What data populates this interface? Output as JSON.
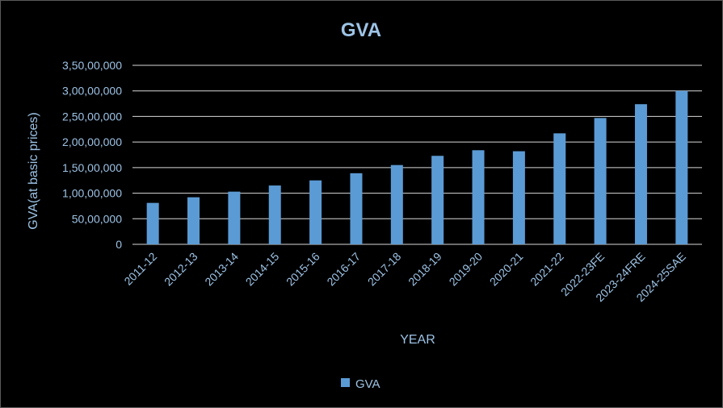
{
  "chart_data": {
    "type": "bar",
    "title": "GVA",
    "xlabel": "YEAR",
    "ylabel": "GVA(at basic prices)",
    "ylim": [
      0,
      35000000
    ],
    "yticks": [
      0,
      5000000,
      10000000,
      15000000,
      20000000,
      25000000,
      30000000,
      35000000
    ],
    "ytick_labels": [
      "0",
      "50,00,000",
      "1,00,00,000",
      "1,50,00,000",
      "2,00,00,000",
      "2,50,00,000",
      "3,00,00,000",
      "3,50,00,000"
    ],
    "categories": [
      "2011-12",
      "2012-13",
      "2013-14",
      "2014-15",
      "2015-16",
      "2016-17",
      "2017-18",
      "2018-19",
      "2019-20",
      "2020-21",
      "2021-22",
      "2022-23FE",
      "2023-24FRE",
      "2024-25SAE"
    ],
    "series": [
      {
        "name": "GVA",
        "color": "#5b9bd5",
        "values": [
          8100000,
          9200000,
          10300000,
          11500000,
          12500000,
          13900000,
          15500000,
          17300000,
          18400000,
          18200000,
          21700000,
          24700000,
          27400000,
          30000000
        ]
      }
    ],
    "grid": true,
    "legend": "bottom"
  }
}
